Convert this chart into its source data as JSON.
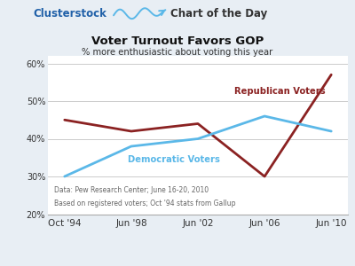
{
  "x_labels": [
    "Oct '94",
    "Jun '98",
    "Jun '02",
    "Jun '06",
    "Jun '10"
  ],
  "x_positions": [
    0,
    1,
    2,
    3,
    4
  ],
  "republican": [
    45,
    42,
    44,
    30,
    57
  ],
  "democrat": [
    30,
    38,
    40,
    46,
    42
  ],
  "rep_color": "#8B2222",
  "dem_color": "#5BB8E8",
  "title": "Voter Turnout Favors GOP",
  "subtitle": "% more enthusiastic about voting this year",
  "rep_label": "Republican Voters",
  "dem_label": "Democratic Voters",
  "footnote1": "Data: Pew Research Center; June 16-20, 2010",
  "footnote2": "Based on registered voters; Oct '94 stats from Gallup",
  "ylim": [
    20,
    62
  ],
  "yticks": [
    20,
    30,
    40,
    50,
    60
  ],
  "header_left": "Clusterstock",
  "header_right": "Chart of the Day",
  "bg_color": "#E8EEF4",
  "plot_bg_color": "#FFFFFF",
  "header_bg": "#D8E4EE",
  "grid_color": "#CCCCCC",
  "axis_color": "#AAAAAA"
}
